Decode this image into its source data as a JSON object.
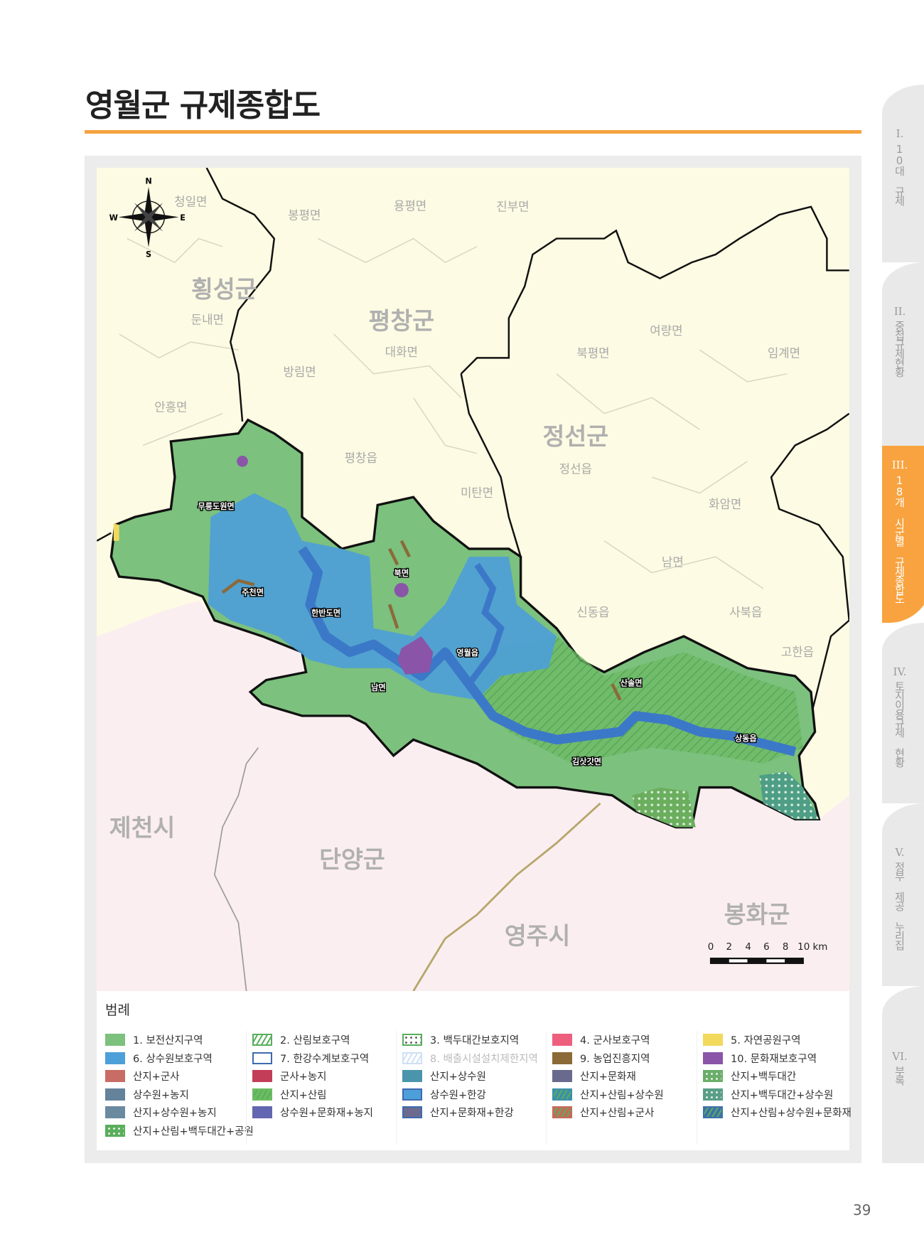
{
  "page": {
    "title": "영월군 규제종합도",
    "page_number": "39",
    "accent_color": "#f4a340"
  },
  "side_tabs": [
    {
      "roman": "I.",
      "label": "10대 규제",
      "active": false
    },
    {
      "roman": "II.",
      "label": "중첩규제현황",
      "active": false
    },
    {
      "roman": "III.",
      "label": "18개 시군별 규제종합도",
      "active": true
    },
    {
      "roman": "IV.",
      "label": "토지이용규제 현황",
      "active": false
    },
    {
      "roman": "V.",
      "label": "정부 제공 누리집",
      "active": false
    },
    {
      "roman": "VI.",
      "label": "부록",
      "active": false
    }
  ],
  "map": {
    "compass": {
      "n": "N",
      "s": "S",
      "e": "E",
      "w": "W"
    },
    "regions_large": [
      "횡성군",
      "평창군",
      "정선군",
      "제천시",
      "단양군",
      "영주시",
      "봉화군"
    ],
    "regions_small": [
      "청일면",
      "봉평면",
      "용평면",
      "진부면",
      "둔내면",
      "대화면",
      "여량면",
      "북평면",
      "임계면",
      "방림면",
      "안흥면",
      "정선읍",
      "평창읍",
      "미탄면",
      "화암면",
      "남면",
      "신동읍",
      "사북읍",
      "고한읍"
    ],
    "yeongwol_towns": [
      "무릉도원면",
      "주천면",
      "한반도면",
      "북면",
      "영월읍",
      "남면",
      "산솔면",
      "김삿갓면",
      "상동읍"
    ],
    "scale": {
      "ticks": [
        "0",
        "2",
        "4",
        "6",
        "8",
        "10 km"
      ]
    },
    "colors": {
      "background": "#fdfbe3",
      "south_provinces": "#fbeef0",
      "conservation_forest": "#79c07c",
      "water": "#4a9bd8",
      "cultural": "#8a55a8",
      "agri": "#8b6a3a"
    }
  },
  "legend": {
    "title": "범례",
    "columns": [
      [
        {
          "label": "1. 보전산지구역",
          "color": "#7cc17e"
        },
        {
          "label": "6. 상수원보호구역",
          "color": "#4d9fd9"
        },
        {
          "label": "산지+군사",
          "color": "#c96c66"
        },
        {
          "label": "상수원+농지",
          "color": "#64829a"
        },
        {
          "label": "산지+상수원+농지",
          "color": "#6a8aa0"
        },
        {
          "label": "산지+산림+백두대간+공원",
          "color": "#5aae5c",
          "pattern": "dots"
        }
      ],
      [
        {
          "label": "2. 산림보호구역",
          "color": "#ffffff",
          "pattern": "hatch",
          "border": "#5aae5c"
        },
        {
          "label": "7. 한강수계보호구역",
          "color": "#ffffff",
          "border": "#3e6ab0"
        },
        {
          "label": "군사+농지",
          "color": "#c43d58"
        },
        {
          "label": "산지+산림",
          "color": "#6cbc62",
          "pattern": "hatch"
        },
        {
          "label": "상수원+문화재+농지",
          "color": "#6366b0"
        }
      ],
      [
        {
          "label": "3. 백두대간보호지역",
          "color": "#ffffff",
          "pattern": "dots",
          "border": "#5aae5c"
        },
        {
          "label": "8. 배출시설설치제한지역",
          "color": "#ffffff",
          "pattern": "hatch-light",
          "border": "#cfe0f4",
          "faded": true
        },
        {
          "label": "산지+상수원",
          "color": "#4a95ac"
        },
        {
          "label": "상수원+한강",
          "color": "#4d9fd9",
          "border": "#3e6ab0"
        },
        {
          "label": "산지+문화재+한강",
          "color": "#6c6a8e",
          "border": "#3e6ab0"
        }
      ],
      [
        {
          "label": "4. 군사보호구역",
          "color": "#ee5f7d"
        },
        {
          "label": "9. 농업진흥지역",
          "color": "#8b6a38"
        },
        {
          "label": "산지+문화재",
          "color": "#6a6a8e"
        },
        {
          "label": "산지+산림+상수원",
          "color": "#3d90a8",
          "pattern": "hatch"
        },
        {
          "label": "산지+산림+군사",
          "color": "#c66a58",
          "pattern": "hatch"
        }
      ],
      [
        {
          "label": "5. 자연공원구역",
          "color": "#f2d95c"
        },
        {
          "label": "10. 문화재보호구역",
          "color": "#8a55a8"
        },
        {
          "label": "산지+백두대간",
          "color": "#6aae6a",
          "pattern": "dots"
        },
        {
          "label": "산지+백두대간+상수원",
          "color": "#5a9e88",
          "pattern": "dots"
        },
        {
          "label": "산지+산림+상수원+문화재",
          "color": "#3e72a8",
          "pattern": "hatch"
        }
      ]
    ]
  }
}
